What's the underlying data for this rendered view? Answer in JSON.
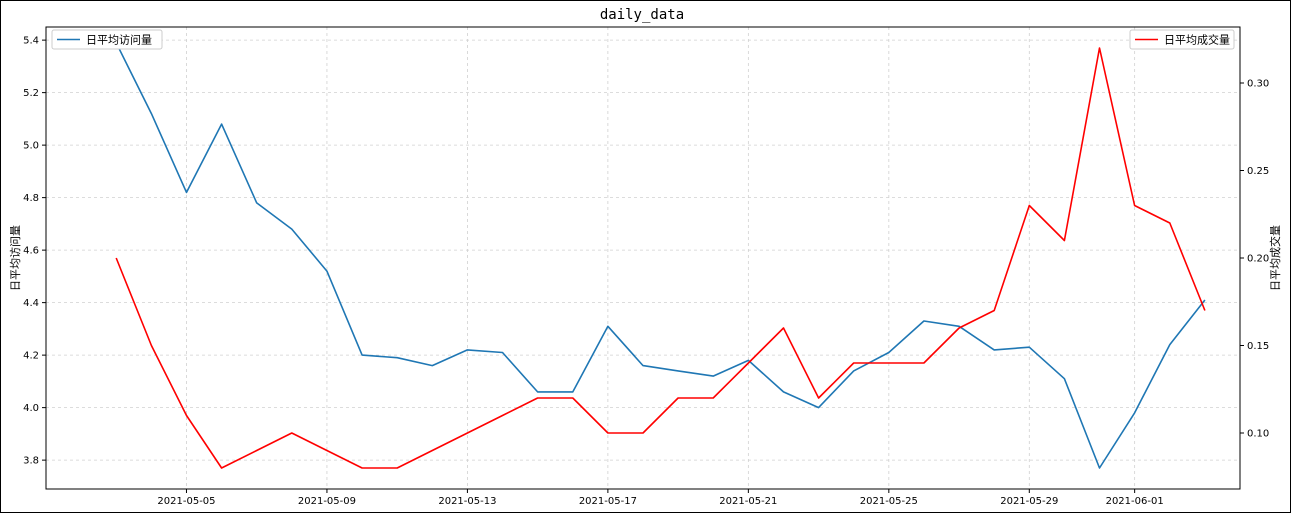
{
  "chart_data": {
    "type": "line",
    "title": "daily_data",
    "xlabel": "",
    "x": [
      "2021-05-03",
      "2021-05-04",
      "2021-05-05",
      "2021-05-06",
      "2021-05-07",
      "2021-05-08",
      "2021-05-09",
      "2021-05-10",
      "2021-05-11",
      "2021-05-12",
      "2021-05-13",
      "2021-05-14",
      "2021-05-15",
      "2021-05-16",
      "2021-05-17",
      "2021-05-18",
      "2021-05-19",
      "2021-05-20",
      "2021-05-21",
      "2021-05-22",
      "2021-05-23",
      "2021-05-24",
      "2021-05-25",
      "2021-05-26",
      "2021-05-27",
      "2021-05-28",
      "2021-05-29",
      "2021-05-30",
      "2021-05-31",
      "2021-06-01",
      "2021-06-02",
      "2021-06-03"
    ],
    "x_ticks": [
      "2021-05-05",
      "2021-05-09",
      "2021-05-13",
      "2021-05-17",
      "2021-05-21",
      "2021-05-25",
      "2021-05-29",
      "2021-06-01"
    ],
    "xlim": [
      "2021-05-01",
      "2021-06-04"
    ],
    "grid": true,
    "series": [
      {
        "name": "日平均访问量",
        "axis": "left",
        "color": "#1f77b4",
        "values": [
          5.39,
          5.12,
          4.82,
          5.08,
          4.78,
          4.68,
          4.52,
          4.2,
          4.19,
          4.16,
          4.22,
          4.21,
          4.06,
          4.06,
          4.31,
          4.16,
          4.14,
          4.12,
          4.18,
          4.06,
          4.0,
          4.14,
          4.21,
          4.33,
          4.31,
          4.22,
          4.23,
          4.11,
          3.77,
          3.98,
          4.24,
          4.41
        ]
      },
      {
        "name": "日平均成交量",
        "axis": "right",
        "color": "#ff0000",
        "values": [
          0.2,
          0.15,
          0.11,
          0.08,
          0.09,
          0.1,
          0.09,
          0.08,
          0.08,
          0.09,
          0.1,
          0.11,
          0.12,
          0.12,
          0.1,
          0.1,
          0.12,
          0.12,
          0.14,
          0.16,
          0.12,
          0.14,
          0.14,
          0.14,
          0.16,
          0.17,
          0.23,
          0.21,
          0.32,
          0.23,
          0.22,
          0.17
        ]
      }
    ],
    "left_axis": {
      "label": "日平均访问量",
      "ylim": [
        3.69,
        5.45
      ],
      "ticks": [
        "3.8",
        "4.0",
        "4.2",
        "4.4",
        "4.6",
        "4.8",
        "5.0",
        "5.2",
        "5.4"
      ]
    },
    "right_axis": {
      "label": "日平均成交量",
      "ylim": [
        0.068,
        0.332
      ],
      "ticks": [
        "0.10",
        "0.15",
        "0.20",
        "0.25",
        "0.30"
      ]
    },
    "legends": [
      {
        "label": "日平均访问量",
        "placement": "top-left"
      },
      {
        "label": "日平均成交量",
        "placement": "top-right"
      }
    ]
  }
}
